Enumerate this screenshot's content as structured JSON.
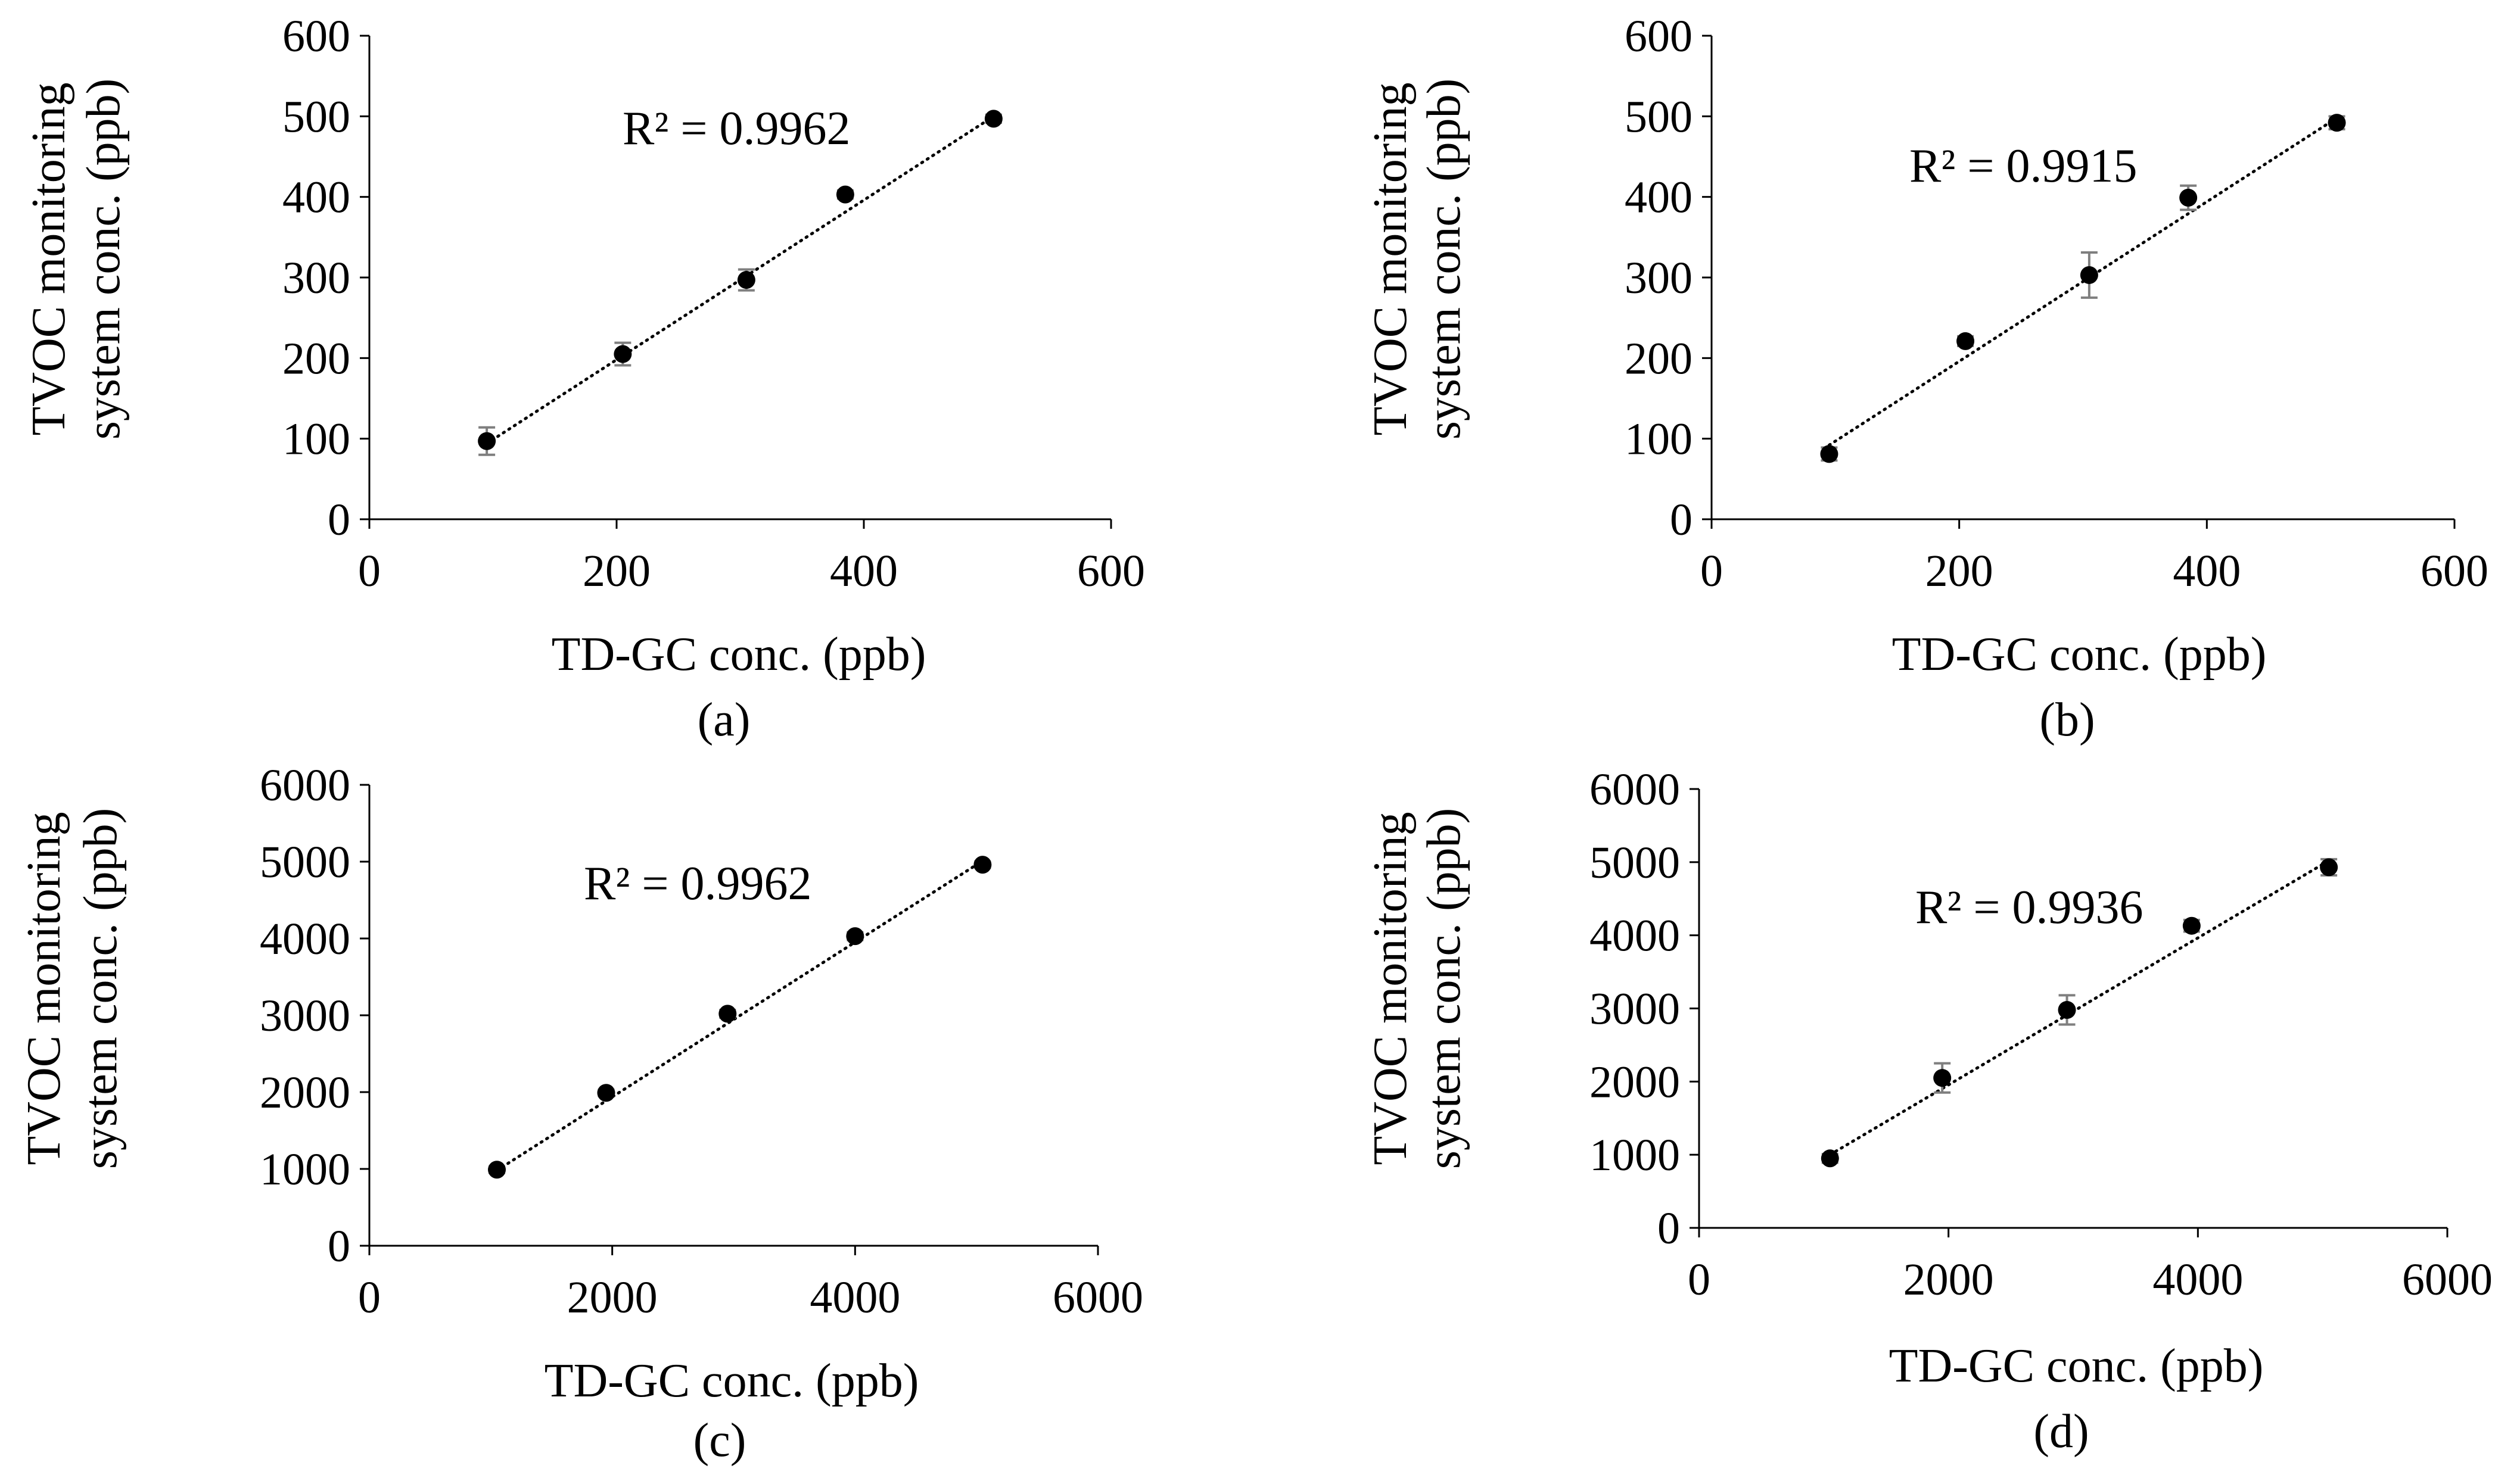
{
  "colors": {
    "axis": "#000000",
    "marker": "#000000",
    "errorbar": "#7f7f7f",
    "trendline": "#000000",
    "background": "#ffffff"
  },
  "chart_data": [
    {
      "type": "scatter",
      "panel_label": "(a)",
      "xlabel": "TD-GC conc. (ppb)",
      "ylabel_line1": "TVOC monitoring",
      "ylabel_line2": "system conc. (ppb)",
      "xlim": [
        0,
        600
      ],
      "ylim": [
        0,
        600
      ],
      "xticks": [
        0,
        200,
        400,
        600
      ],
      "yticks": [
        0,
        100,
        200,
        300,
        400,
        500,
        600
      ],
      "x": [
        95,
        205,
        305,
        385,
        505
      ],
      "y": [
        97,
        205,
        297,
        403,
        497
      ],
      "yerr": [
        17,
        14,
        13,
        5,
        5
      ],
      "trendline": {
        "style": "dotted",
        "x": [
          95,
          505
        ],
        "y": [
          94,
          500
        ]
      },
      "annotation": "R² = 0.9962"
    },
    {
      "type": "scatter",
      "panel_label": "(b)",
      "xlabel": "TD-GC conc. (ppb)",
      "ylabel_line1": "TVOC monitoring",
      "ylabel_line2": "system conc. (ppb)",
      "xlim": [
        0,
        600
      ],
      "ylim": [
        0,
        600
      ],
      "xticks": [
        0,
        200,
        400,
        600
      ],
      "yticks": [
        0,
        100,
        200,
        300,
        400,
        500,
        600
      ],
      "x": [
        95,
        205,
        305,
        385,
        505
      ],
      "y": [
        81,
        221,
        303,
        399,
        492
      ],
      "yerr": [
        8,
        6,
        28,
        15,
        8
      ],
      "trendline": {
        "style": "dotted",
        "x": [
          95,
          505
        ],
        "y": [
          92,
          498
        ]
      },
      "annotation": "R² = 0.9915"
    },
    {
      "type": "scatter",
      "panel_label": "(c)",
      "xlabel": "TD-GC conc. (ppb)",
      "ylabel_line1": "TVOC monitoring",
      "ylabel_line2": "system conc. (ppb)",
      "xlim": [
        0,
        6000
      ],
      "ylim": [
        0,
        6000
      ],
      "xticks": [
        0,
        2000,
        4000,
        6000
      ],
      "yticks": [
        0,
        1000,
        2000,
        3000,
        4000,
        5000,
        6000
      ],
      "x": [
        1050,
        1950,
        2950,
        4000,
        5050
      ],
      "y": [
        990,
        1990,
        3020,
        4030,
        4960
      ],
      "yerr": [
        40,
        40,
        50,
        50,
        40
      ],
      "trendline": {
        "style": "dotted",
        "x": [
          1050,
          5050
        ],
        "y": [
          980,
          5010
        ]
      },
      "annotation": "R² = 0.9962"
    },
    {
      "type": "scatter",
      "panel_label": "(d)",
      "xlabel": "TD-GC conc. (ppb)",
      "ylabel_line1": "TVOC monitoring",
      "ylabel_line2": "system conc. (ppb)",
      "xlim": [
        0,
        6000
      ],
      "ylim": [
        0,
        6000
      ],
      "xticks": [
        0,
        2000,
        4000,
        6000
      ],
      "yticks": [
        0,
        1000,
        2000,
        3000,
        4000,
        5000,
        6000
      ],
      "x": [
        1050,
        1950,
        2950,
        3950,
        5050
      ],
      "y": [
        950,
        2050,
        2980,
        4130,
        4930
      ],
      "yerr": [
        60,
        200,
        200,
        80,
        110
      ],
      "trendline": {
        "style": "dotted",
        "x": [
          1050,
          5050
        ],
        "y": [
          1000,
          5020
        ]
      },
      "annotation": "R² = 0.9936"
    }
  ]
}
